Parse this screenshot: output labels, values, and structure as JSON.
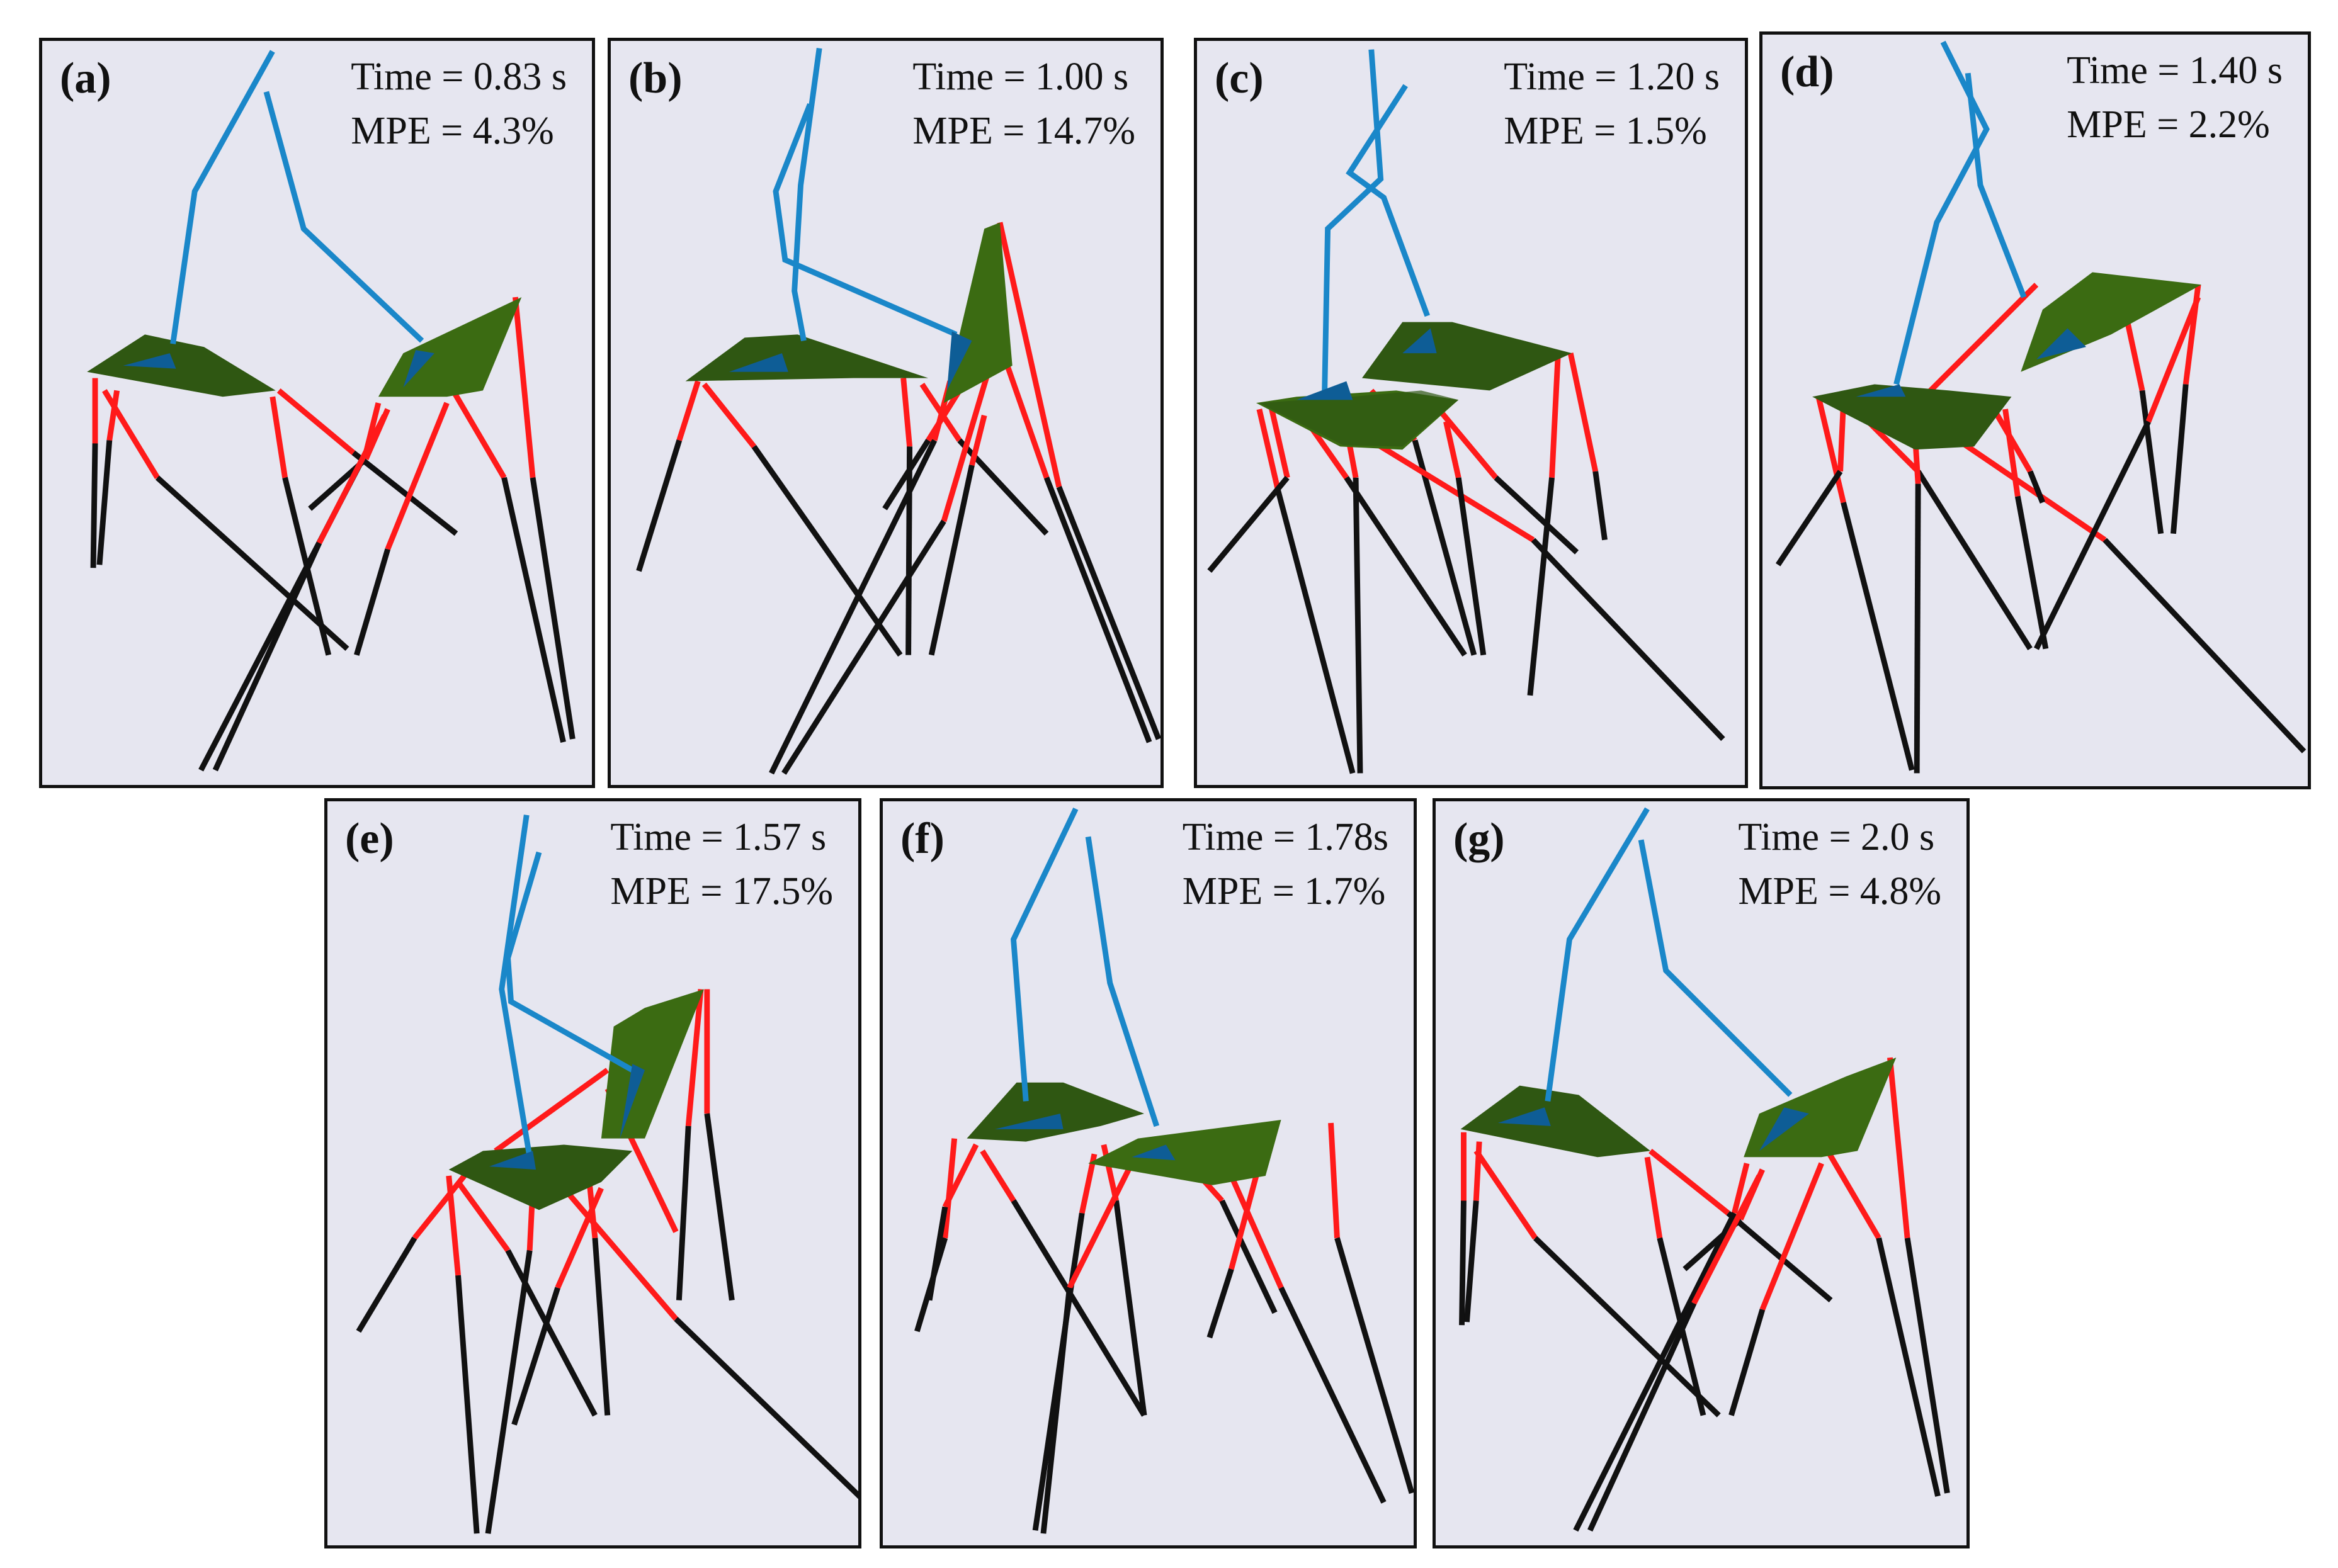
{
  "figure": {
    "panels": [
      {
        "id": "a",
        "label": "(a)",
        "time": "Time = 0.83 s",
        "mpe": "MPE = 4.3%"
      },
      {
        "id": "b",
        "label": "(b)",
        "time": "Time = 1.00 s",
        "mpe": "MPE = 14.7%"
      },
      {
        "id": "c",
        "label": "(c)",
        "time": "Time = 1.20 s",
        "mpe": "MPE = 1.5%"
      },
      {
        "id": "d",
        "label": "(d)",
        "time": "Time = 1.40 s",
        "mpe": "MPE = 2.2%"
      },
      {
        "id": "e",
        "label": "(e)",
        "time": "Time = 1.57 s",
        "mpe": "MPE = 17.5%"
      },
      {
        "id": "f",
        "label": "(f)",
        "time": "Time = 1.78s",
        "mpe": "MPE = 1.7%"
      },
      {
        "id": "g",
        "label": "(g)",
        "time": "Time = 2.0 s",
        "mpe": "MPE = 4.8%"
      }
    ]
  },
  "colors": {
    "panel_bg": "#e6e6f0",
    "tether": "#1a87c9",
    "platform": "#3b6b12",
    "platform_dark": "#2e5410",
    "anchor": "#0e5d96",
    "leg_upper": "#ff1a1a",
    "leg_lower": "#111111"
  }
}
